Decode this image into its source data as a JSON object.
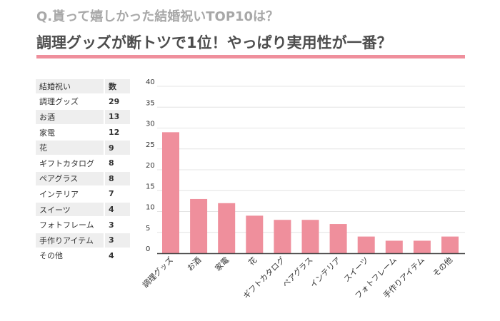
{
  "question": "Q.貰って嬉しかった結婚祝いTOP10は？",
  "headline": "調理グッズが断トツで1位！やっぱり実用性が一番？",
  "colors": {
    "accent": "#ef8f9c",
    "bar": "#ef8f9c",
    "question": "#a8a8a8",
    "headline": "#4d4d4d"
  },
  "table": {
    "header": [
      "結婚祝い",
      "数"
    ],
    "rows": [
      [
        "調理グッズ",
        "29"
      ],
      [
        "お酒",
        "13"
      ],
      [
        "家電",
        "12"
      ],
      [
        "花",
        "9"
      ],
      [
        "ギフトカタログ",
        "8"
      ],
      [
        "ペアグラス",
        "8"
      ],
      [
        "インテリア",
        "7"
      ],
      [
        "スイーツ",
        "4"
      ],
      [
        "フォトフレーム",
        "3"
      ],
      [
        "手作りアイテム",
        "3"
      ],
      [
        "その他",
        "4"
      ]
    ]
  },
  "chart_data": {
    "type": "bar",
    "title": "",
    "xlabel": "",
    "ylabel": "",
    "categories": [
      "調理グッズ",
      "お酒",
      "家電",
      "花",
      "ギフトカタログ",
      "ペアグラス",
      "インテリア",
      "スイーツ",
      "フォトフレーム",
      "手作りアイテム",
      "その他"
    ],
    "values": [
      29,
      13,
      12,
      9,
      8,
      8,
      7,
      4,
      3,
      3,
      4
    ],
    "ylim": [
      0,
      40
    ],
    "yticks": [
      0,
      5,
      10,
      15,
      20,
      25,
      30,
      35,
      40
    ],
    "grid": true,
    "legend": "none"
  }
}
